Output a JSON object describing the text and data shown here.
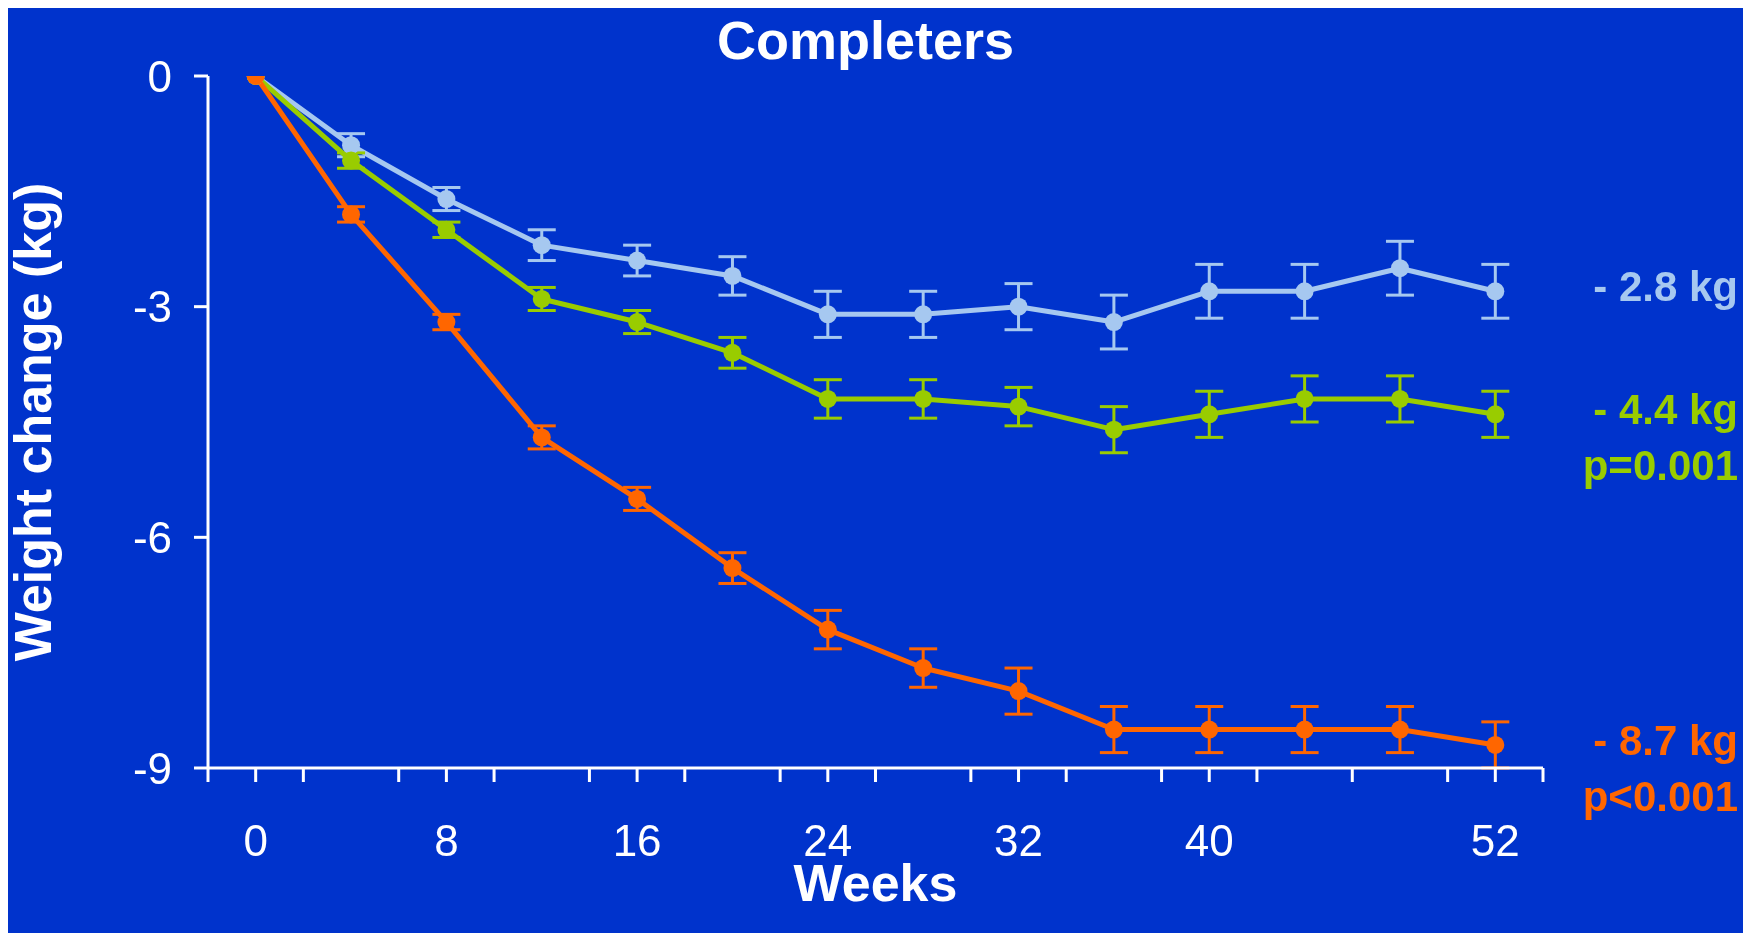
{
  "chart_data": {
    "type": "line",
    "title": "Completers",
    "xlabel": "Weeks",
    "ylabel": "Weight change (kg)",
    "x": [
      0,
      4,
      8,
      12,
      16,
      20,
      24,
      28,
      32,
      36,
      40,
      44,
      48,
      52
    ],
    "series": [
      {
        "color": "#a6c8f0",
        "values": [
          0,
          -0.9,
          -1.6,
          -2.2,
          -2.4,
          -2.6,
          -3.1,
          -3.1,
          -3.0,
          -3.2,
          -2.8,
          -2.8,
          -2.5,
          -2.8
        ],
        "errors": [
          null,
          0.15,
          0.15,
          0.2,
          0.2,
          0.25,
          0.3,
          0.3,
          0.3,
          0.35,
          0.35,
          0.35,
          0.35,
          0.35
        ]
      },
      {
        "color": "#99cc00",
        "values": [
          0,
          -1.1,
          -2.0,
          -2.9,
          -3.2,
          -3.6,
          -4.2,
          -4.2,
          -4.3,
          -4.6,
          -4.4,
          -4.2,
          -4.2,
          -4.4
        ],
        "errors": [
          null,
          0.1,
          0.1,
          0.15,
          0.15,
          0.2,
          0.25,
          0.25,
          0.25,
          0.3,
          0.3,
          0.3,
          0.3,
          0.3
        ]
      },
      {
        "color": "#ff6600",
        "values": [
          0,
          -1.8,
          -3.2,
          -4.7,
          -5.5,
          -6.4,
          -7.2,
          -7.7,
          -8.0,
          -8.5,
          -8.5,
          -8.5,
          -8.5,
          -8.7
        ],
        "errors": [
          null,
          0.1,
          0.1,
          0.15,
          0.15,
          0.2,
          0.25,
          0.25,
          0.3,
          0.3,
          0.3,
          0.3,
          0.3,
          0.3
        ]
      }
    ],
    "xlim": [
      -2,
      54
    ],
    "xticks": [
      {
        "value": -2,
        "label": null
      },
      0,
      {
        "value": 2,
        "label": null
      },
      {
        "value": 6,
        "label": null
      },
      8,
      {
        "value": 10,
        "label": null
      },
      {
        "value": 14,
        "label": null
      },
      16,
      {
        "value": 18,
        "label": null
      },
      {
        "value": 22,
        "label": null
      },
      24,
      {
        "value": 26,
        "label": null
      },
      {
        "value": 30,
        "label": null
      },
      32,
      {
        "value": 34,
        "label": null
      },
      {
        "value": 38,
        "label": null
      },
      40,
      {
        "value": 42,
        "label": null
      },
      {
        "value": 46,
        "label": null
      },
      {
        "value": 50,
        "label": null
      },
      52,
      {
        "value": 54,
        "label": null
      }
    ],
    "ylim": [
      -9,
      0
    ],
    "yticks": [
      -9,
      -6,
      -3,
      0
    ],
    "grid": false,
    "legend": false,
    "marker": "circle",
    "line_style": "solid",
    "annotations": [
      "- 2.8 kg",
      "- 4.4 kg\np=0.001",
      "- 8.7 kg\np<0.001"
    ]
  }
}
